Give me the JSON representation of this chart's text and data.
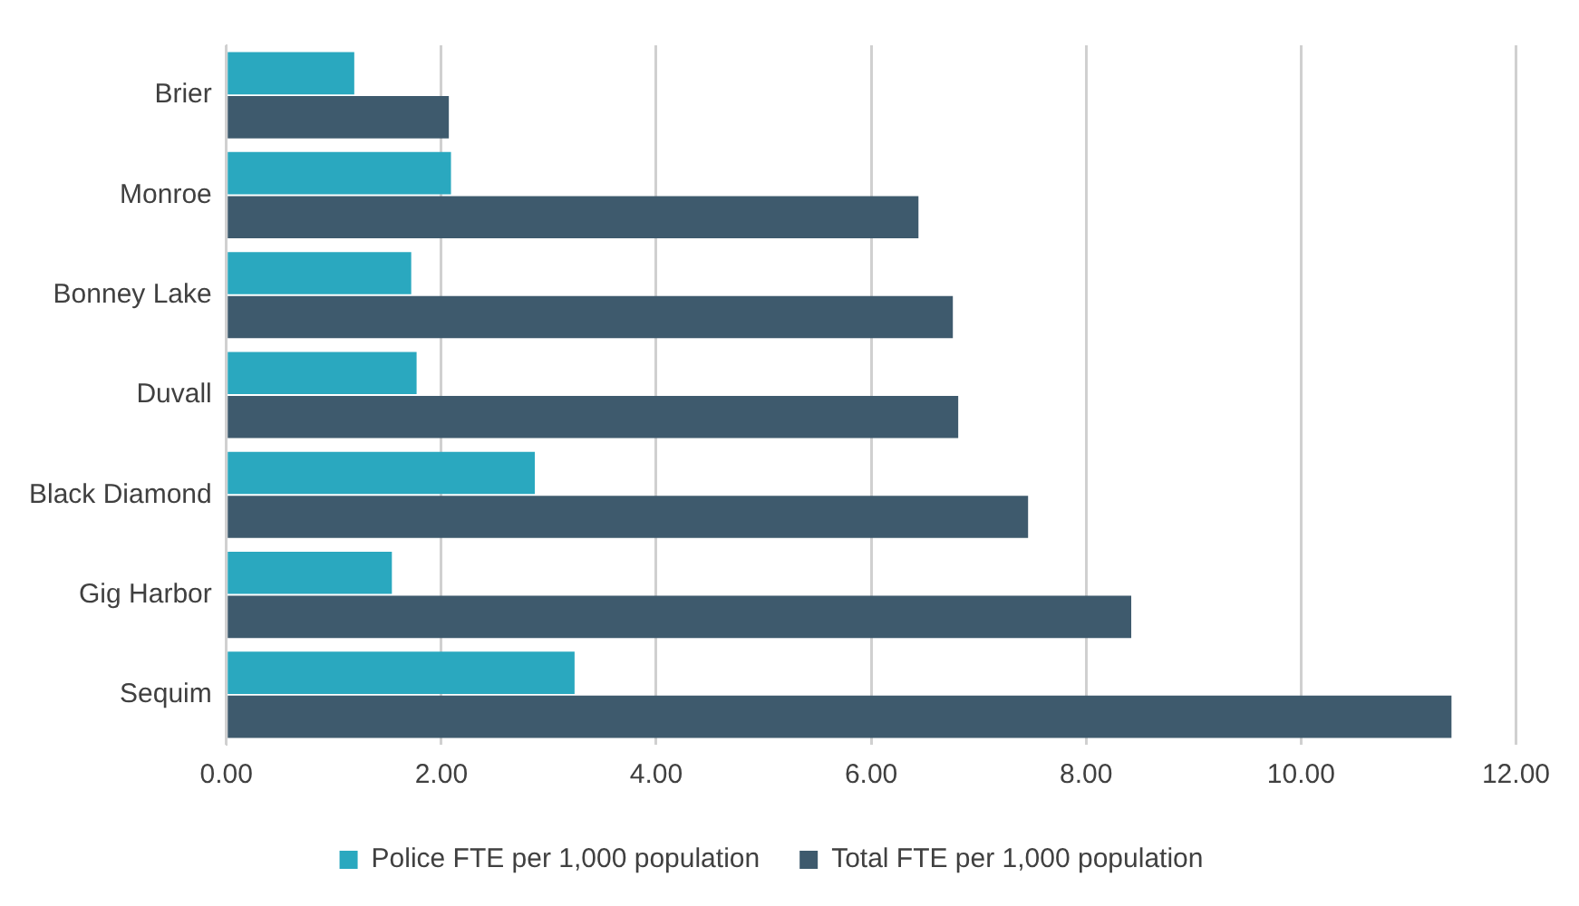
{
  "chart_data": {
    "type": "bar",
    "orientation": "horizontal",
    "categories": [
      "Brier",
      "Monroe",
      "Bonney Lake",
      "Duvall",
      "Black Diamond",
      "Gig Harbor",
      "Sequim"
    ],
    "series": [
      {
        "name": "Police FTE per 1,000 population",
        "color": "#2aa8bf",
        "values": [
          1.19,
          2.09,
          1.72,
          1.77,
          2.87,
          1.54,
          3.24
        ]
      },
      {
        "name": "Total FTE per 1,000 population",
        "color": "#3e5a6d",
        "values": [
          2.07,
          6.44,
          6.76,
          6.81,
          7.46,
          8.42,
          11.4
        ]
      }
    ],
    "xlim": [
      0,
      12
    ],
    "xticks": [
      {
        "value": 0,
        "label": "0.00"
      },
      {
        "value": 2,
        "label": "2.00"
      },
      {
        "value": 4,
        "label": "4.00"
      },
      {
        "value": 6,
        "label": "6.00"
      },
      {
        "value": 8,
        "label": "8.00"
      },
      {
        "value": 10,
        "label": "10.00"
      },
      {
        "value": 12,
        "label": "12.00"
      }
    ],
    "grid": "x",
    "legend": "bottom"
  }
}
